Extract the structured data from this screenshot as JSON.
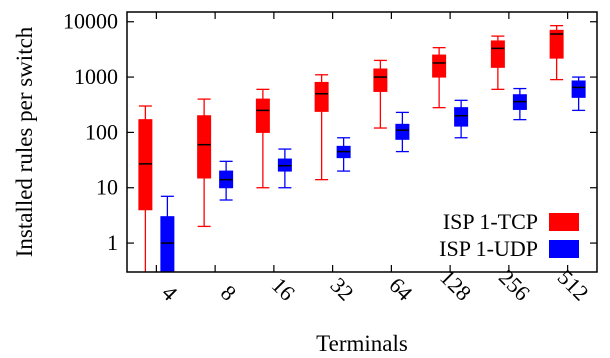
{
  "chart_data": {
    "type": "box",
    "xlabel": "Terminals",
    "ylabel": "Installed rules per switch",
    "yscale": "log",
    "ylim": [
      0.3,
      15000
    ],
    "yticks": [
      1,
      10,
      100,
      1000,
      10000
    ],
    "ytick_labels": [
      "1",
      "10",
      "100",
      "1000",
      "10000"
    ],
    "categories": [
      "4",
      "8",
      "16",
      "32",
      "64",
      "128",
      "256",
      "512"
    ],
    "legend_position": "bottom-right",
    "series": [
      {
        "name": "ISP 1-TCP",
        "color": "#ff0000",
        "boxes": [
          {
            "min": 0.3,
            "q1": 4,
            "median": 27,
            "q3": 170,
            "max": 300
          },
          {
            "min": 2,
            "q1": 15,
            "median": 60,
            "q3": 200,
            "max": 400
          },
          {
            "min": 10,
            "q1": 100,
            "median": 250,
            "q3": 400,
            "max": 600
          },
          {
            "min": 14,
            "q1": 240,
            "median": 500,
            "q3": 800,
            "max": 1100
          },
          {
            "min": 120,
            "q1": 550,
            "median": 1000,
            "q3": 1400,
            "max": 2000
          },
          {
            "min": 280,
            "q1": 1000,
            "median": 1800,
            "q3": 2500,
            "max": 3400
          },
          {
            "min": 600,
            "q1": 1500,
            "median": 3300,
            "q3": 4500,
            "max": 5500
          },
          {
            "min": 900,
            "q1": 2200,
            "median": 6000,
            "q3": 7000,
            "max": 8500
          }
        ]
      },
      {
        "name": "ISP 1-UDP",
        "color": "#0000ff",
        "boxes": [
          {
            "min": 0.3,
            "q1": 0.3,
            "median": 1,
            "q3": 3,
            "max": 7
          },
          {
            "min": 6,
            "q1": 10,
            "median": 14,
            "q3": 20,
            "max": 30
          },
          {
            "min": 10,
            "q1": 20,
            "median": 25,
            "q3": 33,
            "max": 50
          },
          {
            "min": 20,
            "q1": 35,
            "median": 45,
            "q3": 56,
            "max": 80
          },
          {
            "min": 45,
            "q1": 75,
            "median": 110,
            "q3": 140,
            "max": 230
          },
          {
            "min": 80,
            "q1": 130,
            "median": 200,
            "q3": 280,
            "max": 380
          },
          {
            "min": 170,
            "q1": 260,
            "median": 360,
            "q3": 480,
            "max": 620
          },
          {
            "min": 250,
            "q1": 430,
            "median": 650,
            "q3": 850,
            "max": 1000
          }
        ]
      }
    ]
  }
}
